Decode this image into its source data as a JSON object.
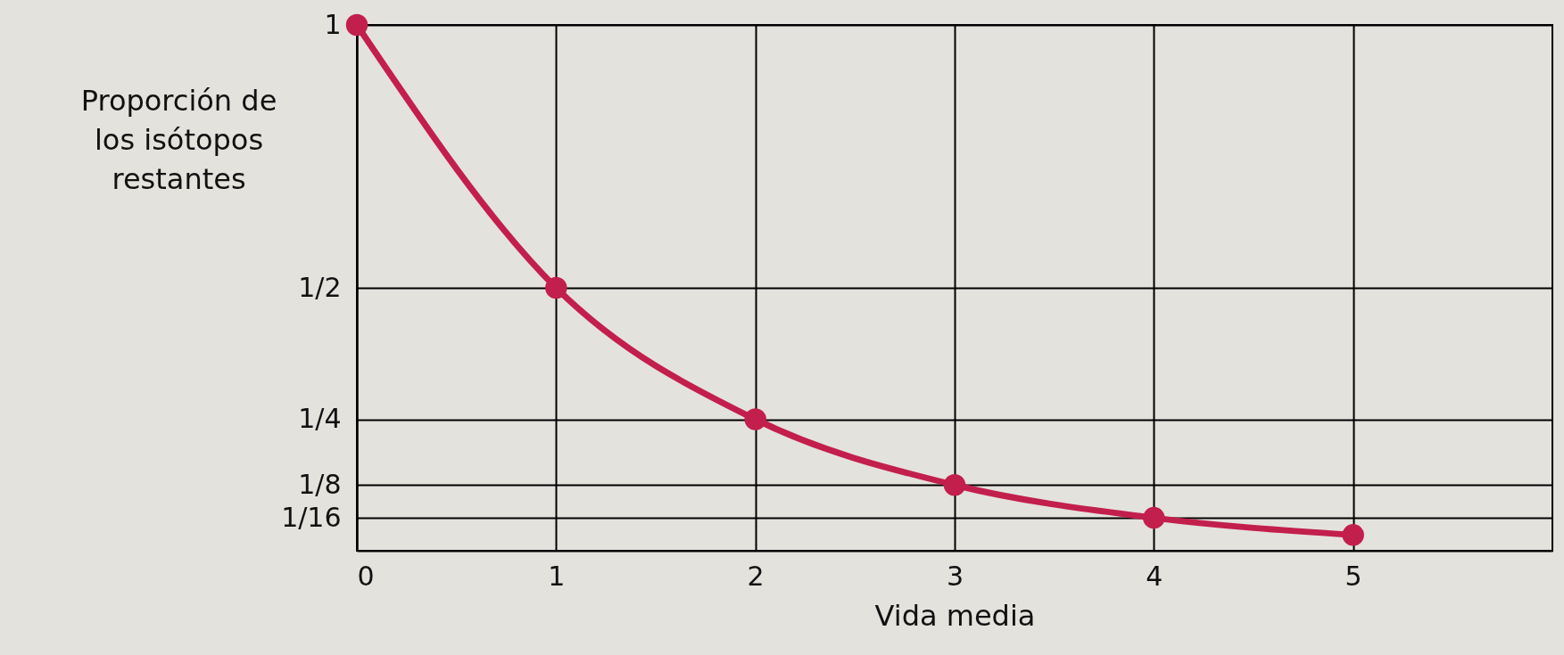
{
  "chart_data": {
    "type": "line",
    "xlabel": "Vida media",
    "ylabel": "Proporción de los isótopos restantes",
    "x": [
      0,
      1,
      2,
      3,
      4,
      5
    ],
    "series": [
      {
        "color": "#c21f4d",
        "values": [
          1,
          0.5,
          0.25,
          0.125,
          0.0625,
          0.03
        ]
      }
    ],
    "xlim": [
      0,
      6
    ],
    "xticks": [
      0,
      1,
      2,
      3,
      4,
      5
    ],
    "ylim": [
      0,
      1
    ],
    "yticks": [
      {
        "value": 0.0625,
        "label": "1/16"
      },
      {
        "value": 0.125,
        "label": "1/8"
      },
      {
        "value": 0.25,
        "label": "1/4"
      },
      {
        "value": 0.5,
        "label": "1/2"
      },
      1
    ],
    "grid": true,
    "marker": "circle",
    "line_style": "solid"
  }
}
